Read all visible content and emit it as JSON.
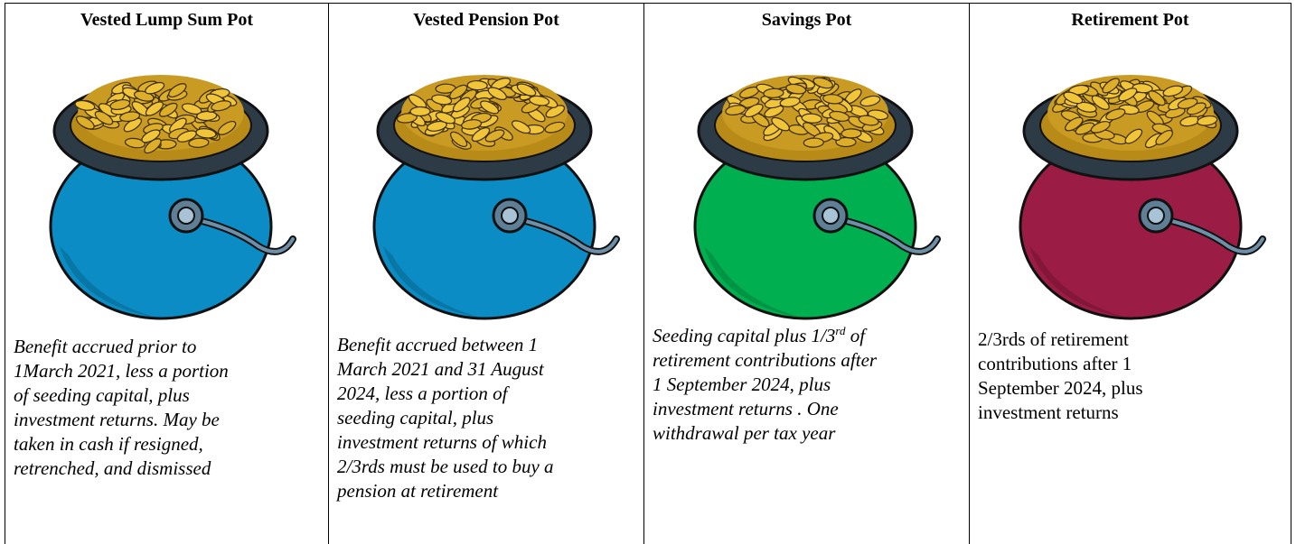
{
  "columns": [
    {
      "heading": "Vested Lump Sum Pot",
      "color": "#0b8cc4",
      "italic": true,
      "description": [
        "Benefit accrued prior to",
        "1March 2021, less a portion",
        "of seeding capital, plus",
        "investment returns. May be",
        "taken in cash if resigned,",
        "retrenched, and dismissed"
      ]
    },
    {
      "heading": "Vested Pension Pot",
      "color": "#0b8cc4",
      "italic": true,
      "description": [
        "Benefit accrued between 1",
        "March 2021 and 31 August",
        "2024, less a portion of",
        "seeding capital, plus",
        "investment returns of which",
        "2/3rds must be used to buy a",
        "pension at retirement"
      ]
    },
    {
      "heading": "Savings Pot",
      "color": "#00b050",
      "italic": true,
      "description": [
        {
          "text": "Seeding capital plus 1/3",
          "superscript": "rd",
          "rest": " of"
        },
        "retirement contributions after",
        "1 September 2024, plus",
        "investment returns . One",
        "withdrawal per tax year"
      ]
    },
    {
      "heading": "Retirement Pot",
      "color": "#9b1c45",
      "italic": false,
      "description": [
        "2/3rds of retirement",
        "contributions after 1",
        "September 2024, plus",
        "investment returns"
      ]
    }
  ]
}
